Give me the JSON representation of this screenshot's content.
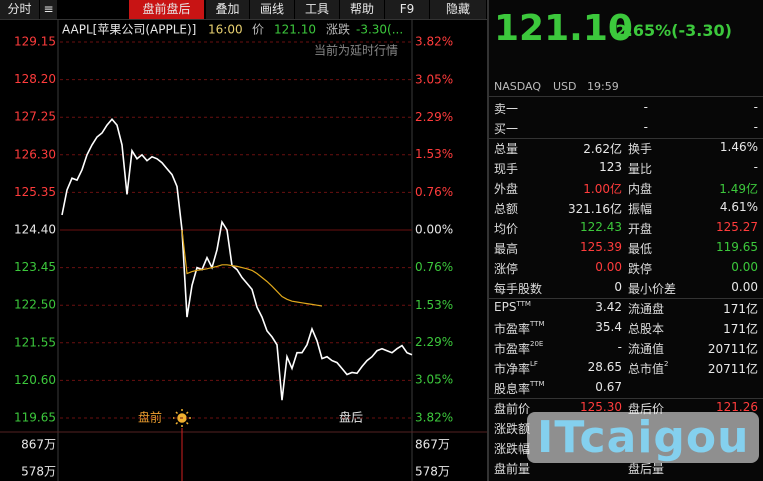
{
  "toolbar": {
    "tabs": [
      "分时",
      "盘前盘后",
      "叠加",
      "画线",
      "工具",
      "帮助",
      "F9",
      "隐藏"
    ]
  },
  "chart_data": {
    "type": "line",
    "header": {
      "symbol": "AAPL[苹果公司(APPLE)]",
      "time": "16:00",
      "price_label": "价",
      "price": "121.10",
      "change_label": "涨跌",
      "change": "-3.30(..."
    },
    "notice": "当前为延时行情",
    "series": [
      {
        "color": "#ffffff",
        "values": [
          124.78,
          125.41,
          125.71,
          125.66,
          125.92,
          126.3,
          126.55,
          126.75,
          126.85,
          127.05,
          127.2,
          127.05,
          126.55,
          125.3,
          126.4,
          126.2,
          126.3,
          126.15,
          126.25,
          126.2,
          126.1,
          125.95,
          125.8,
          125.5,
          124.4,
          122.2,
          123.0,
          123.45,
          123.4,
          123.7,
          123.45,
          123.9,
          124.6,
          124.4,
          123.5,
          123.4,
          123.2,
          123.05,
          122.9,
          122.45,
          122.2,
          121.85,
          121.7,
          121.5,
          120.1,
          121.2,
          120.9,
          121.3,
          121.3,
          121.5,
          121.9,
          121.6,
          121.15,
          121.2,
          121.1,
          121.05,
          120.9,
          120.75,
          120.8,
          120.78,
          120.95,
          121.1,
          121.2,
          121.35,
          121.4,
          121.35,
          121.3,
          121.4,
          121.48,
          121.3,
          121.25
        ]
      },
      {
        "color": "#e0a81c",
        "values": [
          null,
          null,
          null,
          null,
          null,
          null,
          null,
          null,
          null,
          null,
          null,
          null,
          null,
          null,
          null,
          null,
          null,
          null,
          null,
          null,
          null,
          null,
          null,
          null,
          124.4,
          123.3,
          123.35,
          123.38,
          123.4,
          123.42,
          123.45,
          123.48,
          123.52,
          123.52,
          123.5,
          123.48,
          123.45,
          123.42,
          123.38,
          123.3,
          123.2,
          123.1,
          122.98,
          122.85,
          122.72,
          122.65,
          122.6,
          122.58,
          122.56,
          122.54,
          122.52,
          122.5,
          122.48,
          null,
          null,
          null,
          null,
          null,
          null,
          null,
          null,
          null,
          null,
          null,
          null,
          null,
          null,
          null,
          null,
          null,
          null
        ]
      }
    ],
    "ylim": [
      119.65,
      129.15
    ],
    "yticks": [
      129.15,
      {
        "value": 128.2,
        "label": "128.20"
      },
      127.25,
      {
        "value": 126.3,
        "label": "126.30"
      },
      125.35,
      {
        "value": 124.4,
        "label": "124.40"
      },
      123.45,
      {
        "value": 122.5,
        "label": "122.50"
      },
      121.55,
      {
        "value": 120.6,
        "label": "120.60"
      },
      119.65
    ],
    "y2lim": [
      -3.82,
      3.82
    ],
    "y2ticks": [
      {
        "value": 3.82,
        "label": "3.82%"
      },
      {
        "value": 3.05,
        "label": "3.05%"
      },
      {
        "value": 2.29,
        "label": "2.29%"
      },
      {
        "value": 1.53,
        "label": "1.53%"
      },
      {
        "value": 0.76,
        "label": "0.76%"
      },
      {
        "value": 0,
        "label": "0.00%"
      },
      {
        "value": -0.76,
        "label": "0.76%"
      },
      {
        "value": -1.53,
        "label": "1.53%"
      },
      {
        "value": -2.29,
        "label": "2.29%"
      },
      {
        "value": -3.05,
        "label": "3.05%"
      },
      {
        "value": -3.82,
        "label": "3.82%"
      }
    ],
    "tick_colors": [
      "#ff3c3c",
      "#ff3c3c",
      "#ff3c3c",
      "#ff3c3c",
      "#ff3c3c",
      "#e8e8e8",
      "#3cc83c",
      "#3cc83c",
      "#3cc83c",
      "#3cc83c",
      "#3cc83c"
    ],
    "grid": true,
    "volume_ticks": [
      "867万",
      "578万"
    ],
    "session_labels": [
      "盘前",
      "盘后"
    ]
  },
  "quote": {
    "price": "121.10",
    "change": "-2.65%(-3.30)",
    "exchange": "NASDAQ",
    "currency": "USD",
    "time": "19:59",
    "rows": [
      {
        "cells": [
          "卖一",
          "-",
          "-"
        ]
      },
      {
        "cells": [
          "买一",
          "-",
          "-"
        ]
      },
      {
        "cells": [
          "总量",
          "2.62亿",
          "换手",
          "1.46%"
        ],
        "colors": [
          "#e8e8e8",
          "#e8e8e8"
        ]
      },
      {
        "cells": [
          "现手",
          "123",
          "量比",
          "-"
        ],
        "colors": [
          "#e8e8e8",
          "#e8e8e8"
        ]
      },
      {
        "cells": [
          "外盘",
          "1.00亿",
          "内盘",
          "1.49亿"
        ],
        "colors": [
          "#ff3c3c",
          "#3cc83c"
        ]
      },
      {
        "cells": [
          "总额",
          "321.16亿",
          "振幅",
          "4.61%"
        ],
        "colors": [
          "#e8e8e8",
          "#e8e8e8"
        ]
      },
      {
        "cells": [
          "均价",
          "122.43",
          "开盘",
          "125.27"
        ],
        "colors": [
          "#3cc83c",
          "#ff3c3c"
        ]
      },
      {
        "cells": [
          "最高",
          "125.39",
          "最低",
          "119.65"
        ],
        "colors": [
          "#ff3c3c",
          "#3cc83c"
        ]
      },
      {
        "cells": [
          "涨停",
          "0.00",
          "跌停",
          "0.00"
        ],
        "colors": [
          "#ff3c3c",
          "#3cc83c"
        ]
      },
      {
        "cells": [
          "每手股数",
          "0",
          "最小价差",
          "0.00"
        ],
        "colors": [
          "#e8e8e8",
          "#e8e8e8"
        ]
      },
      {
        "cells": [
          {
            "text": "EPS",
            "sup": "TTM"
          },
          "3.42",
          "流通盘",
          "171亿"
        ],
        "colors": [
          "#e8e8e8",
          "#e8e8e8"
        ]
      },
      {
        "cells": [
          {
            "text": "市盈率",
            "sup": "TTM"
          },
          "35.4",
          "总股本",
          "171亿"
        ],
        "colors": [
          "#e8e8e8",
          "#e8e8e8"
        ]
      },
      {
        "cells": [
          {
            "text": "市盈率",
            "sup": "20E"
          },
          "-",
          "流通值",
          "20711亿"
        ],
        "colors": [
          "#e8e8e8",
          "#e8e8e8"
        ]
      },
      {
        "cells": [
          {
            "text": "市净率",
            "sup": "LF"
          },
          "28.65",
          {
            "text": "总市值",
            "sup": "2"
          },
          "20711亿"
        ],
        "colors": [
          "#e8e8e8",
          "#e8e8e8"
        ]
      },
      {
        "cells": [
          {
            "text": "股息率",
            "sup": "TTM"
          },
          "0.67"
        ],
        "colors": [
          "#e8e8e8"
        ]
      },
      {
        "cells": [
          "盘前价",
          "125.30",
          "盘后价",
          "121.26"
        ],
        "colors": [
          "#ff3c3c",
          "#ff3c3c"
        ]
      },
      {
        "cells": [
          "涨跌额"
        ]
      },
      {
        "cells": [
          "涨跌幅"
        ]
      },
      {
        "cells": [
          "盘前量",
          "盘后量"
        ]
      }
    ],
    "watermark": "ITcaigou"
  }
}
